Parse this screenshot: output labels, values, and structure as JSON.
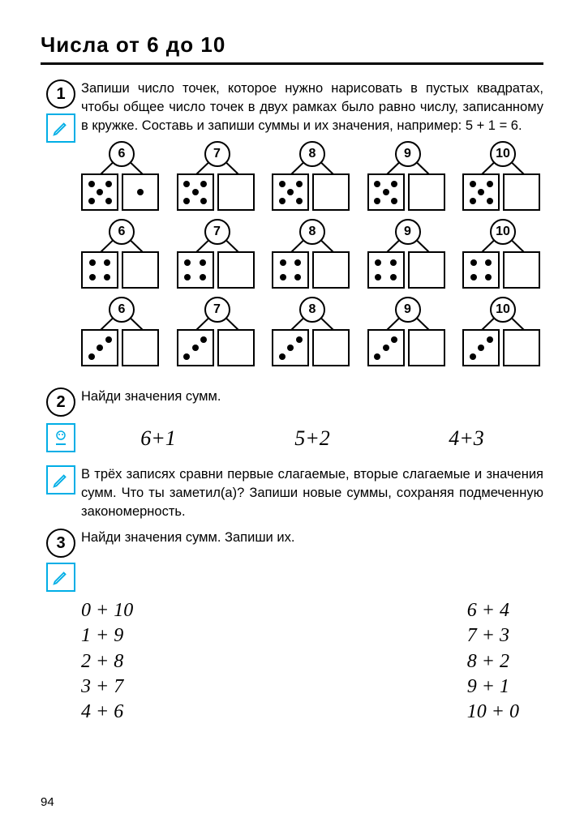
{
  "page_number": "94",
  "title": "Числа от 6 до 10",
  "task1": {
    "num": "1",
    "text": "Запиши число точек, которое нужно нарисовать в пустых квадратах, чтобы общее число точек в двух рамках было равно числу, записанному в кружке. Составь и запиши суммы и их значения, например: 5 + 1 = 6.",
    "groups": [
      [
        {
          "target": "6",
          "dots": 5,
          "pattern": "five",
          "right_dots": 1,
          "right_pattern": "one"
        },
        {
          "target": "7",
          "dots": 5,
          "pattern": "five"
        },
        {
          "target": "8",
          "dots": 5,
          "pattern": "five"
        },
        {
          "target": "9",
          "dots": 5,
          "pattern": "five"
        },
        {
          "target": "10",
          "dots": 5,
          "pattern": "five"
        }
      ],
      [
        {
          "target": "6",
          "dots": 4,
          "pattern": "four"
        },
        {
          "target": "7",
          "dots": 4,
          "pattern": "four"
        },
        {
          "target": "8",
          "dots": 4,
          "pattern": "four"
        },
        {
          "target": "9",
          "dots": 4,
          "pattern": "four"
        },
        {
          "target": "10",
          "dots": 4,
          "pattern": "four"
        }
      ],
      [
        {
          "target": "6",
          "dots": 3,
          "pattern": "three"
        },
        {
          "target": "7",
          "dots": 3,
          "pattern": "three"
        },
        {
          "target": "8",
          "dots": 3,
          "pattern": "three"
        },
        {
          "target": "9",
          "dots": 3,
          "pattern": "three"
        },
        {
          "target": "10",
          "dots": 3,
          "pattern": "three"
        }
      ]
    ]
  },
  "task2": {
    "num": "2",
    "text1": "Найди значения сумм.",
    "sums": [
      "6+1",
      "5+2",
      "4+3"
    ],
    "text2": "В трёх записях сравни первые слагаемые, вторые слагаемые и значения сумм. Что ты заметил(а)? Запиши новые суммы, сохраняя подмеченную закономерность."
  },
  "task3": {
    "num": "3",
    "text": "Найди значения сумм. Запиши их.",
    "left_col": [
      "0 + 10",
      "1 + 9",
      "2 + 8",
      "3 + 7",
      "4 + 6"
    ],
    "right_col": [
      "6 + 4",
      "7 + 3",
      "8 + 2",
      "9 + 1",
      "10 + 0"
    ]
  },
  "colors": {
    "accent": "#00aee6",
    "stroke": "#000000",
    "bg": "#ffffff"
  }
}
